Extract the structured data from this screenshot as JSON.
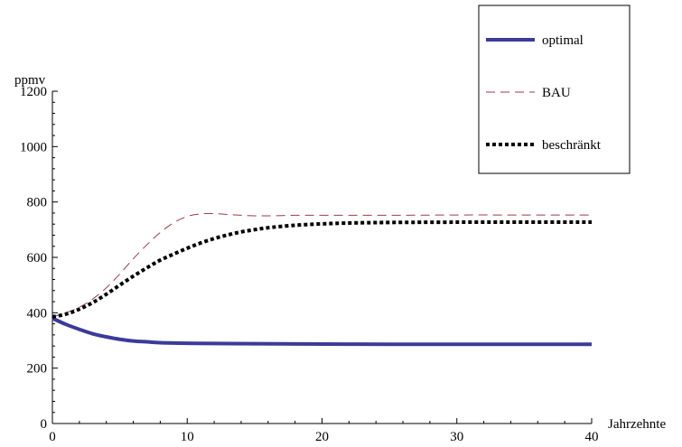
{
  "chart_data": {
    "type": "line",
    "title": "",
    "xlabel": "Jahrzehnte",
    "ylabel": "ppmv",
    "xlim": [
      0,
      40
    ],
    "ylim": [
      0,
      1200
    ],
    "xticks": [
      0,
      10,
      20,
      30,
      40
    ],
    "yticks": [
      0,
      200,
      400,
      600,
      800,
      1000,
      1200
    ],
    "grid": false,
    "legend_position": "top-right",
    "series": [
      {
        "name": "optimal",
        "color": "#3b3b9b",
        "style": "solid-thick",
        "x": [
          0,
          1,
          2,
          3,
          4,
          5,
          6,
          7,
          8,
          10,
          12,
          15,
          20,
          25,
          30,
          35,
          40
        ],
        "y": [
          380,
          358,
          340,
          324,
          313,
          304,
          298,
          295,
          292,
          290,
          289,
          288,
          287,
          286,
          286,
          286,
          286
        ]
      },
      {
        "name": "BAU",
        "color": "#9b3a4d",
        "style": "dashed-thin",
        "x": [
          0,
          1,
          2,
          3,
          4,
          5,
          6,
          7,
          8,
          9,
          10,
          11,
          12,
          13,
          14,
          15,
          16,
          17,
          18,
          20,
          25,
          30,
          35,
          40
        ],
        "y": [
          385,
          400,
          420,
          450,
          490,
          540,
          595,
          645,
          690,
          725,
          748,
          757,
          758,
          755,
          752,
          750,
          750,
          751,
          752,
          752,
          752,
          753,
          753,
          753
        ]
      },
      {
        "name": "beschränkt",
        "color": "#000000",
        "style": "dotted-thick",
        "x": [
          0,
          1,
          2,
          3,
          4,
          5,
          6,
          7,
          8,
          9,
          10,
          11,
          12,
          13,
          14,
          15,
          16,
          18,
          20,
          22,
          25,
          30,
          35,
          40
        ],
        "y": [
          385,
          395,
          413,
          437,
          467,
          500,
          532,
          562,
          590,
          612,
          633,
          652,
          668,
          681,
          692,
          700,
          707,
          716,
          721,
          724,
          726,
          727,
          727,
          727
        ]
      }
    ]
  }
}
